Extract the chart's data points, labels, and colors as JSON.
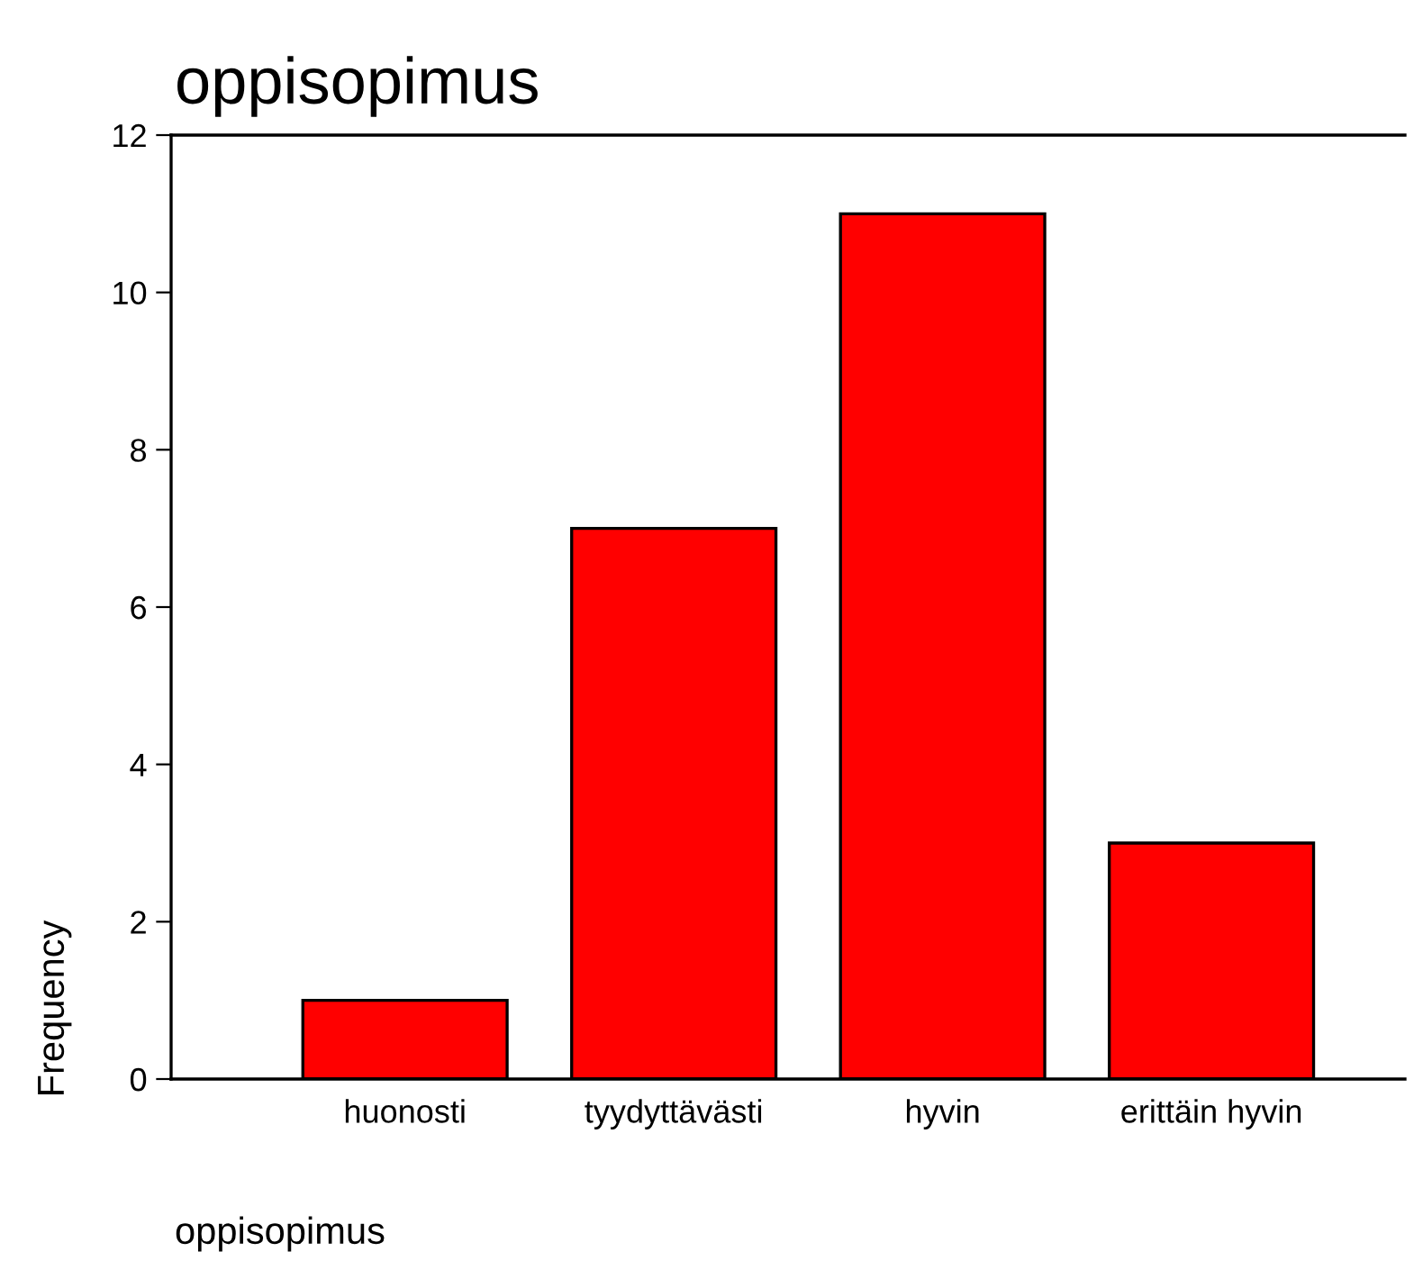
{
  "chart_data": {
    "type": "bar",
    "title": "oppisopimus",
    "xlabel": "oppisopimus",
    "ylabel": "Frequency",
    "categories": [
      "huonosti",
      "tyydyttävästi",
      "hyvin",
      "erittäin hyvin"
    ],
    "values": [
      1,
      7,
      11,
      3
    ],
    "color": "#ff0000",
    "ylim": [
      0,
      12
    ],
    "yticks": [
      0,
      2,
      4,
      6,
      8,
      10,
      12
    ],
    "grid": false,
    "legend": false
  }
}
